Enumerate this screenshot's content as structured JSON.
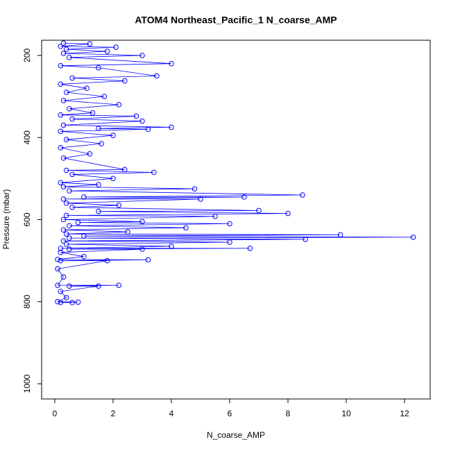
{
  "chart_data": {
    "type": "line",
    "markers": true,
    "color": "#0000ff",
    "title": "ATOM4 Northeast_Pacific_1 N_coarse_AMP",
    "x_label": "N_coarse_AMP",
    "y_label": "Pressure (mbar)",
    "xlim": [
      -0.45,
      12.88
    ],
    "xticks": [
      0,
      2,
      4,
      6,
      8,
      10,
      12
    ],
    "ylim": [
      163,
      1037
    ],
    "y_reversed": true,
    "yticks": [
      200,
      400,
      600,
      800,
      1000
    ],
    "x": [
      0.3,
      1.2,
      0.2,
      2.1,
      0.4,
      1.8,
      0.3,
      3.0,
      0.5,
      4.0,
      0.2,
      1.5,
      3.5,
      0.6,
      2.4,
      0.2,
      1.1,
      0.4,
      1.7,
      0.3,
      2.2,
      0.5,
      1.3,
      0.2,
      2.8,
      0.6,
      3.0,
      0.3,
      4.0,
      1.5,
      3.2,
      0.2,
      2.0,
      0.4,
      1.6,
      0.2,
      1.2,
      0.3,
      2.4,
      0.4,
      3.4,
      0.6,
      2.0,
      0.2,
      1.5,
      0.3,
      4.8,
      0.5,
      8.5,
      1.0,
      6.5,
      0.3,
      5.0,
      0.4,
      2.2,
      0.6,
      7.0,
      1.5,
      8.0,
      0.4,
      5.5,
      0.3,
      3.0,
      0.8,
      6.0,
      0.5,
      4.5,
      0.3,
      2.5,
      0.4,
      9.8,
      1.0,
      12.3,
      0.5,
      8.6,
      0.3,
      6.0,
      0.4,
      4.0,
      0.2,
      6.7,
      0.5,
      3.0,
      0.2,
      1.0,
      0.1,
      3.2,
      0.2,
      1.8,
      0.1,
      0.3,
      0.1,
      2.2,
      0.5,
      1.5,
      0.2,
      0.4,
      0.1,
      0.8,
      0.2,
      0.6
    ],
    "values": [
      170,
      172,
      178,
      180,
      185,
      190,
      195,
      200,
      205,
      220,
      225,
      230,
      250,
      255,
      262,
      270,
      280,
      290,
      300,
      310,
      320,
      330,
      340,
      345,
      348,
      355,
      360,
      370,
      375,
      378,
      380,
      385,
      395,
      405,
      415,
      425,
      440,
      450,
      478,
      480,
      485,
      490,
      500,
      510,
      515,
      520,
      525,
      530,
      540,
      545,
      545,
      550,
      550,
      560,
      565,
      570,
      578,
      580,
      585,
      590,
      592,
      600,
      605,
      607,
      610,
      615,
      620,
      625,
      630,
      635,
      637,
      640,
      643,
      645,
      648,
      652,
      655,
      660,
      665,
      670,
      670,
      672,
      672,
      680,
      690,
      697,
      698,
      700,
      700,
      720,
      740,
      760,
      760,
      762,
      762,
      775,
      790,
      800,
      801,
      802,
      802
    ]
  }
}
